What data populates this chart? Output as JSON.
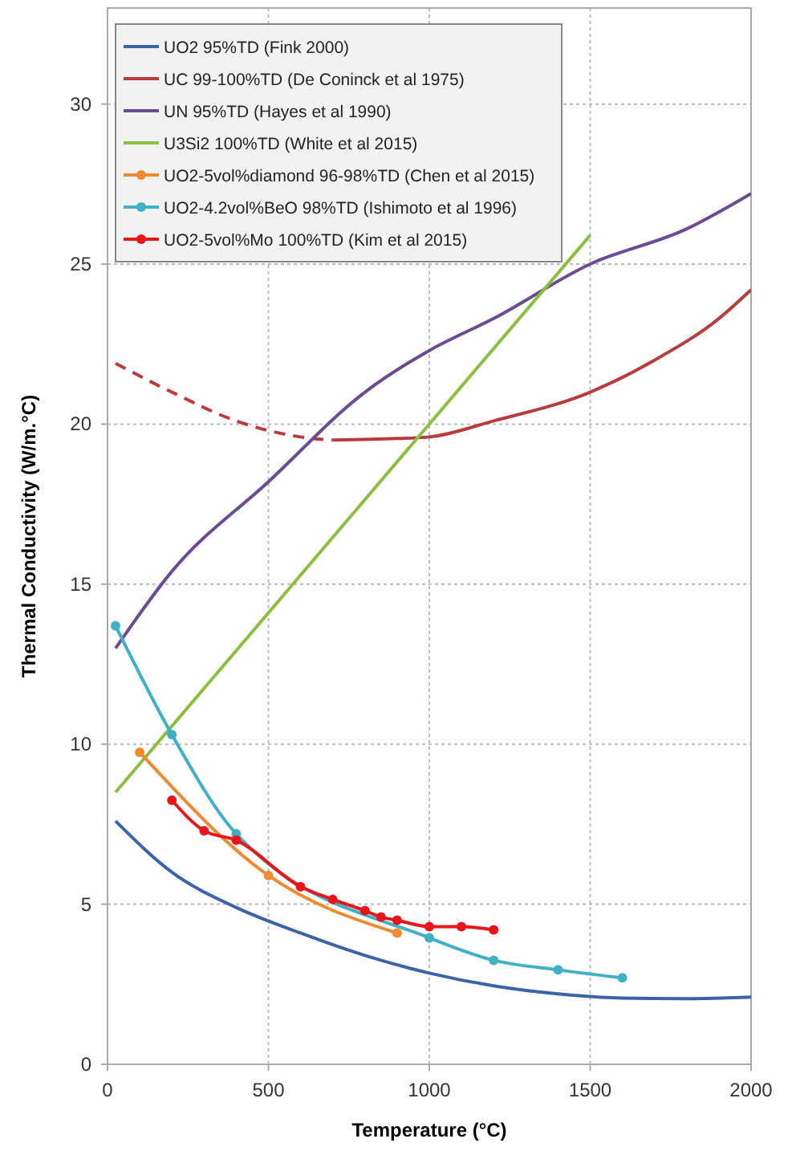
{
  "chart_data": {
    "type": "line",
    "xlabel": "Temperature (°C)",
    "ylabel": "Thermal Conductivity (W/m.°C)",
    "xlim": [
      0,
      2000
    ],
    "ylim": [
      0,
      33
    ],
    "xticks": [
      0,
      500,
      1000,
      1500,
      2000
    ],
    "yticks": [
      0,
      5,
      10,
      15,
      20,
      25,
      30
    ],
    "grid": true,
    "legend": "top left",
    "marker": "none",
    "line_style": "solid",
    "series": [
      {
        "name": "UO2 95%TD (Fink 2000)",
        "color": "#3b64a8",
        "x": [
          25,
          200,
          400,
          600,
          800,
          1000,
          1200,
          1400,
          1600,
          1800,
          2000
        ],
        "values": [
          7.6,
          6.0,
          4.9,
          4.1,
          3.4,
          2.85,
          2.45,
          2.2,
          2.07,
          2.05,
          2.1
        ]
      },
      {
        "name": "UC 99-100%TD (De Coninck et al 1975)",
        "color": "#b83c3c",
        "x": [
          700,
          900,
          1000,
          1200,
          1500,
          1700,
          1900,
          2000
        ],
        "values": [
          19.5,
          19.55,
          19.6,
          20.1,
          21.0,
          22.0,
          23.3,
          24.2
        ]
      },
      {
        "color": "#b83c3c",
        "line_style": "dashed",
        "x": [
          25,
          200,
          400,
          600,
          700
        ],
        "values": [
          21.9,
          21.0,
          20.1,
          19.6,
          19.5
        ]
      },
      {
        "name": "UN 95%TD (Hayes et al 1990)",
        "color": "#6a4c93",
        "x": [
          25,
          200,
          500,
          800,
          1000,
          1200,
          1500,
          1800,
          2000
        ],
        "values": [
          13.0,
          15.4,
          18.2,
          21.0,
          22.3,
          23.3,
          25.0,
          26.1,
          27.2
        ]
      },
      {
        "name": "U3Si2 100%TD (White et al 2015)",
        "color": "#8cbf3f",
        "x": [
          25,
          1500
        ],
        "values": [
          8.5,
          25.9
        ]
      },
      {
        "name": "UO2-5vol%diamond 96-98%TD (Chen et al 2015)",
        "color": "#ef8a2e",
        "marker": "circle",
        "x": [
          100,
          500,
          900
        ],
        "values": [
          9.75,
          5.9,
          4.1
        ]
      },
      {
        "name": "UO2-4.2vol%BeO 98%TD (Ishimoto et al 1996)",
        "color": "#3fb0c6",
        "marker": "circle",
        "x": [
          25,
          200,
          400,
          1000,
          1200,
          1400,
          1600
        ],
        "values": [
          13.7,
          10.3,
          7.2,
          3.95,
          3.25,
          2.95,
          2.7
        ]
      },
      {
        "name": "UO2-5vol%Mo 100%TD (Kim et al 2015)",
        "color": "#e8161b",
        "marker": "circle",
        "x": [
          200,
          300,
          400,
          600,
          700,
          800,
          850,
          900,
          1000,
          1100,
          1200
        ],
        "values": [
          8.25,
          7.3,
          7.0,
          5.55,
          5.15,
          4.8,
          4.6,
          4.5,
          4.3,
          4.3,
          4.2
        ]
      }
    ]
  }
}
